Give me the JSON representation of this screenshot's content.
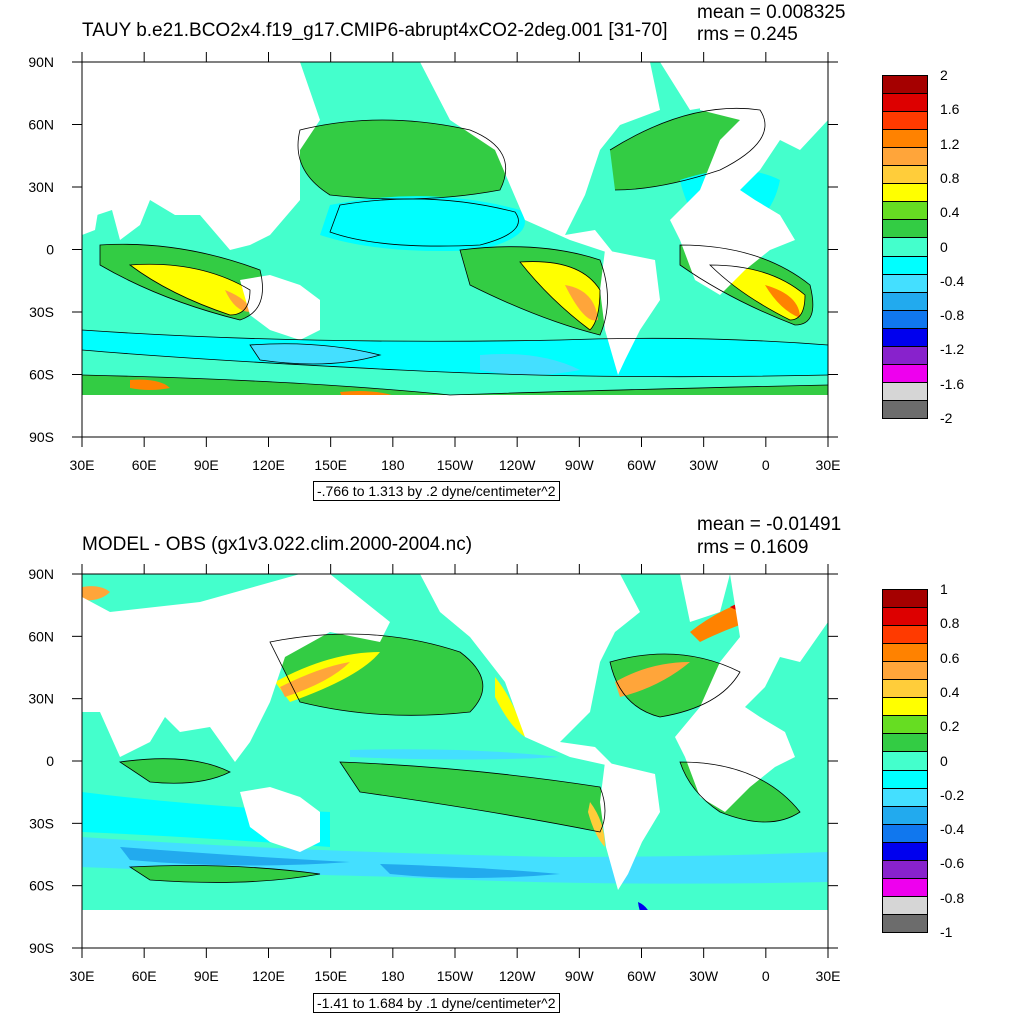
{
  "panels": [
    {
      "title": "TAUY b.e21.BCO2x4.f19_g17.CMIP6-abrupt4xCO2-2deg.001 [31-70]",
      "mean": "mean = 0.008325",
      "rms": "rms = 0.245",
      "contour_note": "-.766 to 1.313 by .2 dyne/centimeter^2",
      "colorbar": {
        "labels": [
          "2",
          "1.6",
          "1.2",
          "0.8",
          "0.4",
          "0",
          "-0.4",
          "-0.8",
          "-1.2",
          "-1.6",
          "-2"
        ],
        "colors": [
          "#a50000",
          "#dd0000",
          "#ff3a00",
          "#ff8200",
          "#ffa53a",
          "#ffcd3a",
          "#ffff00",
          "#66dd22",
          "#33cc44",
          "#44ffcc",
          "#00ffff",
          "#44dfff",
          "#22aaee",
          "#1077ee",
          "#0000ee",
          "#8822cc",
          "#ee00ee",
          "#d6d6d6",
          "#6c6c6c"
        ]
      }
    },
    {
      "title": "MODEL - OBS (gx1v3.022.clim.2000-2004.nc)",
      "mean": "mean = -0.01491",
      "rms": "rms = 0.1609",
      "contour_note": "-1.41 to 1.684 by .1 dyne/centimeter^2",
      "colorbar": {
        "labels": [
          "1",
          "0.8",
          "0.6",
          "0.4",
          "0.2",
          "0",
          "-0.2",
          "-0.4",
          "-0.6",
          "-0.8",
          "-1"
        ],
        "colors": [
          "#a50000",
          "#dd0000",
          "#ff3a00",
          "#ff8200",
          "#ffa53a",
          "#ffcd3a",
          "#ffff00",
          "#66dd22",
          "#33cc44",
          "#44ffcc",
          "#00ffff",
          "#44dfff",
          "#22aaee",
          "#1077ee",
          "#0000ee",
          "#8822cc",
          "#ee00ee",
          "#d6d6d6",
          "#6c6c6c"
        ]
      }
    }
  ],
  "axes": {
    "x_ticks": [
      "30E",
      "60E",
      "90E",
      "120E",
      "150E",
      "180",
      "150W",
      "120W",
      "90W",
      "60W",
      "30W",
      "0",
      "30E"
    ],
    "y_ticks": [
      "90N",
      "60N",
      "30N",
      "0",
      "30S",
      "60S",
      "90S"
    ]
  },
  "map_colors": {
    "ocean_base": "#44ffcc",
    "negative": "#00ffff",
    "strong_negative": "#44dfff",
    "positive": "#33cc44",
    "moderate_positive": "#66dd22",
    "high": "#ffff00",
    "higher": "#ffcd3a",
    "max": "#ff8200",
    "land": "#ffffff"
  }
}
